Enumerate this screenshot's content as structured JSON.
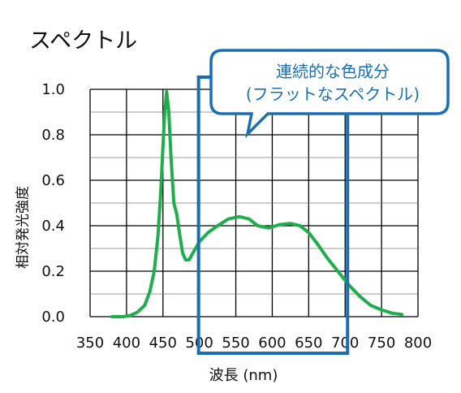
{
  "chart_data": {
    "type": "line",
    "title": "スペクトル",
    "xlabel": "波長 (nm)",
    "ylabel": "相対発光強度",
    "xlim": [
      350,
      800
    ],
    "ylim": [
      0,
      1.0
    ],
    "x_ticks": [
      "350",
      "400",
      "450",
      "500",
      "550",
      "600",
      "650",
      "700",
      "750",
      "800"
    ],
    "y_ticks": [
      "0.0",
      "0.2",
      "0.4",
      "0.6",
      "0.8",
      "1.0"
    ],
    "grid": true,
    "series": [
      {
        "color": "#1fae4b",
        "points": [
          [
            380,
            0.0
          ],
          [
            395,
            0.0
          ],
          [
            405,
            0.005
          ],
          [
            415,
            0.02
          ],
          [
            425,
            0.05
          ],
          [
            432,
            0.11
          ],
          [
            438,
            0.2
          ],
          [
            443,
            0.35
          ],
          [
            447,
            0.55
          ],
          [
            450,
            0.75
          ],
          [
            452,
            0.88
          ],
          [
            455,
            0.99
          ],
          [
            458,
            0.9
          ],
          [
            461,
            0.7
          ],
          [
            465,
            0.5
          ],
          [
            469,
            0.45
          ],
          [
            473,
            0.36
          ],
          [
            477,
            0.28
          ],
          [
            481,
            0.25
          ],
          [
            486,
            0.25
          ],
          [
            491,
            0.28
          ],
          [
            500,
            0.33
          ],
          [
            512,
            0.37
          ],
          [
            525,
            0.4
          ],
          [
            540,
            0.43
          ],
          [
            555,
            0.44
          ],
          [
            568,
            0.43
          ],
          [
            580,
            0.4
          ],
          [
            595,
            0.39
          ],
          [
            610,
            0.405
          ],
          [
            625,
            0.41
          ],
          [
            638,
            0.4
          ],
          [
            650,
            0.37
          ],
          [
            662,
            0.32
          ],
          [
            675,
            0.26
          ],
          [
            690,
            0.2
          ],
          [
            705,
            0.14
          ],
          [
            720,
            0.09
          ],
          [
            735,
            0.05
          ],
          [
            750,
            0.03
          ],
          [
            765,
            0.015
          ],
          [
            778,
            0.01
          ]
        ]
      }
    ],
    "highlight": {
      "x_range": [
        500,
        700
      ],
      "color": "#1a6fb4"
    },
    "annotation": {
      "lines": [
        "連続的な色成分",
        "(フラットなスペクトル)"
      ],
      "color": "#1a6fb4"
    }
  }
}
